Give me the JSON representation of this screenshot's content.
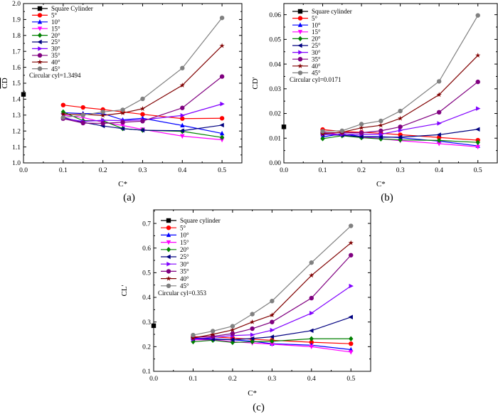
{
  "chart_data": [
    {
      "type": "line",
      "panel_label": "(a)",
      "xlabel": "C*",
      "ylabel": "CD",
      "ylabel_overline": true,
      "xlim": [
        0,
        0.55
      ],
      "ylim": [
        1.0,
        2.0
      ],
      "xticks": [
        "0.0",
        "0.1",
        "0.2",
        "0.3",
        "0.4",
        "0.5"
      ],
      "yticks": [
        "1.0",
        "1.1",
        "1.2",
        "1.3",
        "1.4",
        "1.5",
        "1.6",
        "1.7",
        "1.8",
        "1.9",
        "2.0"
      ],
      "legend_position": "top-left",
      "annotation": "Circular cyl=1.3494",
      "x": [
        0.1,
        0.15,
        0.2,
        0.25,
        0.3,
        0.4,
        0.5
      ],
      "square": {
        "name": "Square Cylinder",
        "x": 0.0,
        "y": 1.43
      },
      "series": [
        {
          "name": "5°",
          "values": [
            1.363,
            1.348,
            1.335,
            1.32,
            1.305,
            1.278,
            1.28
          ]
        },
        {
          "name": "10°",
          "values": [
            1.315,
            1.31,
            1.31,
            1.27,
            1.28,
            1.235,
            1.185
          ]
        },
        {
          "name": "15°",
          "values": [
            1.3,
            1.285,
            1.255,
            1.235,
            1.21,
            1.168,
            1.145
          ]
        },
        {
          "name": "20°",
          "values": [
            1.32,
            1.265,
            1.265,
            1.215,
            1.205,
            1.198,
            1.16
          ]
        },
        {
          "name": "25°",
          "values": [
            1.285,
            1.255,
            1.232,
            1.215,
            1.205,
            1.202,
            1.237
          ]
        },
        {
          "name": "30°",
          "values": [
            1.28,
            1.26,
            1.268,
            1.265,
            1.27,
            1.298,
            1.37
          ]
        },
        {
          "name": "35°",
          "values": [
            1.278,
            1.25,
            1.248,
            1.255,
            1.262,
            1.345,
            1.542
          ]
        },
        {
          "name": "40°",
          "values": [
            1.305,
            1.305,
            1.298,
            1.313,
            1.34,
            1.487,
            1.735
          ]
        },
        {
          "name": "45°",
          "values": [
            1.285,
            1.3,
            1.32,
            1.333,
            1.402,
            1.595,
            1.91
          ]
        }
      ]
    },
    {
      "type": "line",
      "panel_label": "(b)",
      "xlabel": "C*",
      "ylabel": "CD'",
      "ylabel_overline": false,
      "xlim": [
        0,
        0.55
      ],
      "ylim": [
        0,
        0.0645
      ],
      "xticks": [
        "0.0",
        "0.1",
        "0.2",
        "0.3",
        "0.4",
        "0.5"
      ],
      "yticks": [
        "0.00",
        "0.01",
        "0.02",
        "0.03",
        "0.04",
        "0.05",
        "0.06"
      ],
      "legend_position": "top-left",
      "annotation": "Circular cyl=0.0171",
      "x": [
        0.1,
        0.15,
        0.2,
        0.25,
        0.3,
        0.4,
        0.5
      ],
      "square": {
        "name": "Square cylinder",
        "x": 0.0,
        "y": 0.0146
      },
      "series": [
        {
          "name": "5°",
          "values": [
            0.0135,
            0.0127,
            0.0124,
            0.012,
            0.0114,
            0.0103,
            0.0092
          ]
        },
        {
          "name": "10°",
          "values": [
            0.0105,
            0.0118,
            0.0107,
            0.0106,
            0.0102,
            0.0088,
            0.0069
          ]
        },
        {
          "name": "15°",
          "values": [
            0.0125,
            0.0112,
            0.0105,
            0.0098,
            0.009,
            0.0078,
            0.0065
          ]
        },
        {
          "name": "20°",
          "values": [
            0.0098,
            0.011,
            0.0102,
            0.0097,
            0.0093,
            0.0091,
            0.0083
          ]
        },
        {
          "name": "25°",
          "values": [
            0.0115,
            0.0112,
            0.0106,
            0.0104,
            0.0104,
            0.0114,
            0.0136
          ]
        },
        {
          "name": "30°",
          "values": [
            0.0115,
            0.0115,
            0.0116,
            0.0116,
            0.0132,
            0.016,
            0.022
          ]
        },
        {
          "name": "35°",
          "values": [
            0.0122,
            0.0122,
            0.0122,
            0.013,
            0.0146,
            0.0205,
            0.0328
          ]
        },
        {
          "name": "40°",
          "values": [
            0.0118,
            0.0124,
            0.0142,
            0.0152,
            0.018,
            0.0276,
            0.0435
          ]
        },
        {
          "name": "45°",
          "values": [
            0.0128,
            0.013,
            0.0157,
            0.017,
            0.021,
            0.033,
            0.0597
          ]
        }
      ]
    },
    {
      "type": "line",
      "panel_label": "(c)",
      "xlabel": "C*",
      "ylabel": "CL'",
      "ylabel_overline": false,
      "xlim": [
        0,
        0.55
      ],
      "ylim": [
        0.1,
        0.755
      ],
      "xticks": [
        "0.0",
        "0.1",
        "0.2",
        "0.3",
        "0.4",
        "0.5"
      ],
      "yticks": [
        "0.1",
        "0.2",
        "0.3",
        "0.4",
        "0.5",
        "0.6",
        "0.7"
      ],
      "legend_position": "top-left",
      "annotation": "Circular cyl=0.353",
      "x": [
        0.1,
        0.15,
        0.2,
        0.25,
        0.3,
        0.4,
        0.5
      ],
      "square": {
        "name": "Square cylinder",
        "x": 0.0,
        "y": 0.285
      },
      "series": [
        {
          "name": "5°",
          "values": [
            0.24,
            0.24,
            0.235,
            0.23,
            0.226,
            0.218,
            0.212
          ]
        },
        {
          "name": "10°",
          "values": [
            0.235,
            0.232,
            0.228,
            0.222,
            0.212,
            0.206,
            0.188
          ]
        },
        {
          "name": "15°",
          "values": [
            0.228,
            0.228,
            0.22,
            0.215,
            0.21,
            0.2,
            0.178
          ]
        },
        {
          "name": "20°",
          "values": [
            0.22,
            0.226,
            0.217,
            0.22,
            0.222,
            0.232,
            0.232
          ]
        },
        {
          "name": "25°",
          "values": [
            0.232,
            0.23,
            0.228,
            0.233,
            0.24,
            0.265,
            0.32
          ]
        },
        {
          "name": "30°",
          "values": [
            0.23,
            0.238,
            0.245,
            0.248,
            0.267,
            0.336,
            0.446
          ]
        },
        {
          "name": "35°",
          "values": [
            0.237,
            0.242,
            0.253,
            0.273,
            0.3,
            0.397,
            0.571
          ]
        },
        {
          "name": "40°",
          "values": [
            0.235,
            0.25,
            0.268,
            0.3,
            0.328,
            0.489,
            0.621
          ]
        },
        {
          "name": "45°",
          "values": [
            0.247,
            0.263,
            0.283,
            0.332,
            0.385,
            0.541,
            0.69
          ]
        }
      ]
    }
  ],
  "colors": {
    "square": "#000000",
    "series": [
      "#ff0000",
      "#0000ff",
      "#ff00ff",
      "#008000",
      "#000080",
      "#8000ff",
      "#800080",
      "#800000",
      "#808080"
    ]
  },
  "markers": [
    "circle",
    "triangle-up",
    "triangle-down",
    "diamond",
    "triangle-left",
    "triangle-right",
    "circle",
    "star",
    "circle"
  ]
}
